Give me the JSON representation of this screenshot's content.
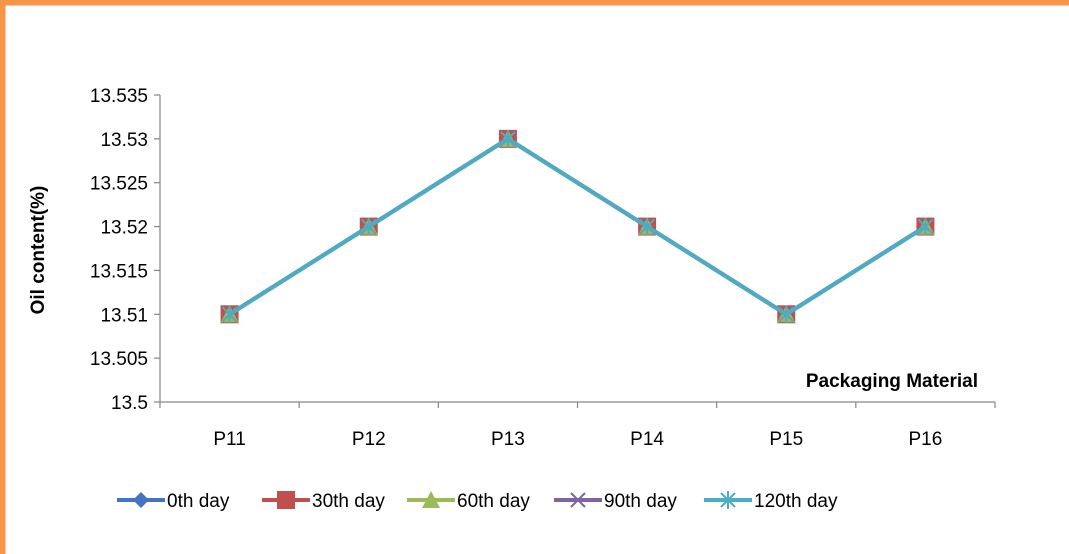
{
  "chart_data": {
    "type": "line",
    "categories": [
      "P11",
      "P12",
      "P13",
      "P14",
      "P15",
      "P16"
    ],
    "series": [
      {
        "name": "0th day",
        "values": [
          13.51,
          13.52,
          13.53,
          13.52,
          13.51,
          13.52
        ],
        "color": "#4472C4",
        "marker": "diamond"
      },
      {
        "name": "30th day",
        "values": [
          13.51,
          13.52,
          13.53,
          13.52,
          13.51,
          13.52
        ],
        "color": "#C0504D",
        "marker": "square"
      },
      {
        "name": "60th day",
        "values": [
          13.51,
          13.52,
          13.53,
          13.52,
          13.51,
          13.52
        ],
        "color": "#9BBB59",
        "marker": "triangle"
      },
      {
        "name": "90th day",
        "values": [
          13.51,
          13.52,
          13.53,
          13.52,
          13.51,
          13.52
        ],
        "color": "#8064A2",
        "marker": "x"
      },
      {
        "name": "120th day",
        "values": [
          13.51,
          13.52,
          13.53,
          13.52,
          13.51,
          13.52
        ],
        "color": "#4BACC6",
        "marker": "star"
      }
    ],
    "ylim": [
      13.5,
      13.535
    ],
    "yticks": [
      "13.5",
      "13.505",
      "13.51",
      "13.515",
      "13.52",
      "13.525",
      "13.53",
      "13.535"
    ],
    "ylabel": "Oil content(%)",
    "xlabel": "Packaging Material",
    "legend_position": "bottom",
    "grid": false
  },
  "colors": {
    "frame": "#F79646",
    "axis": "#868686"
  }
}
